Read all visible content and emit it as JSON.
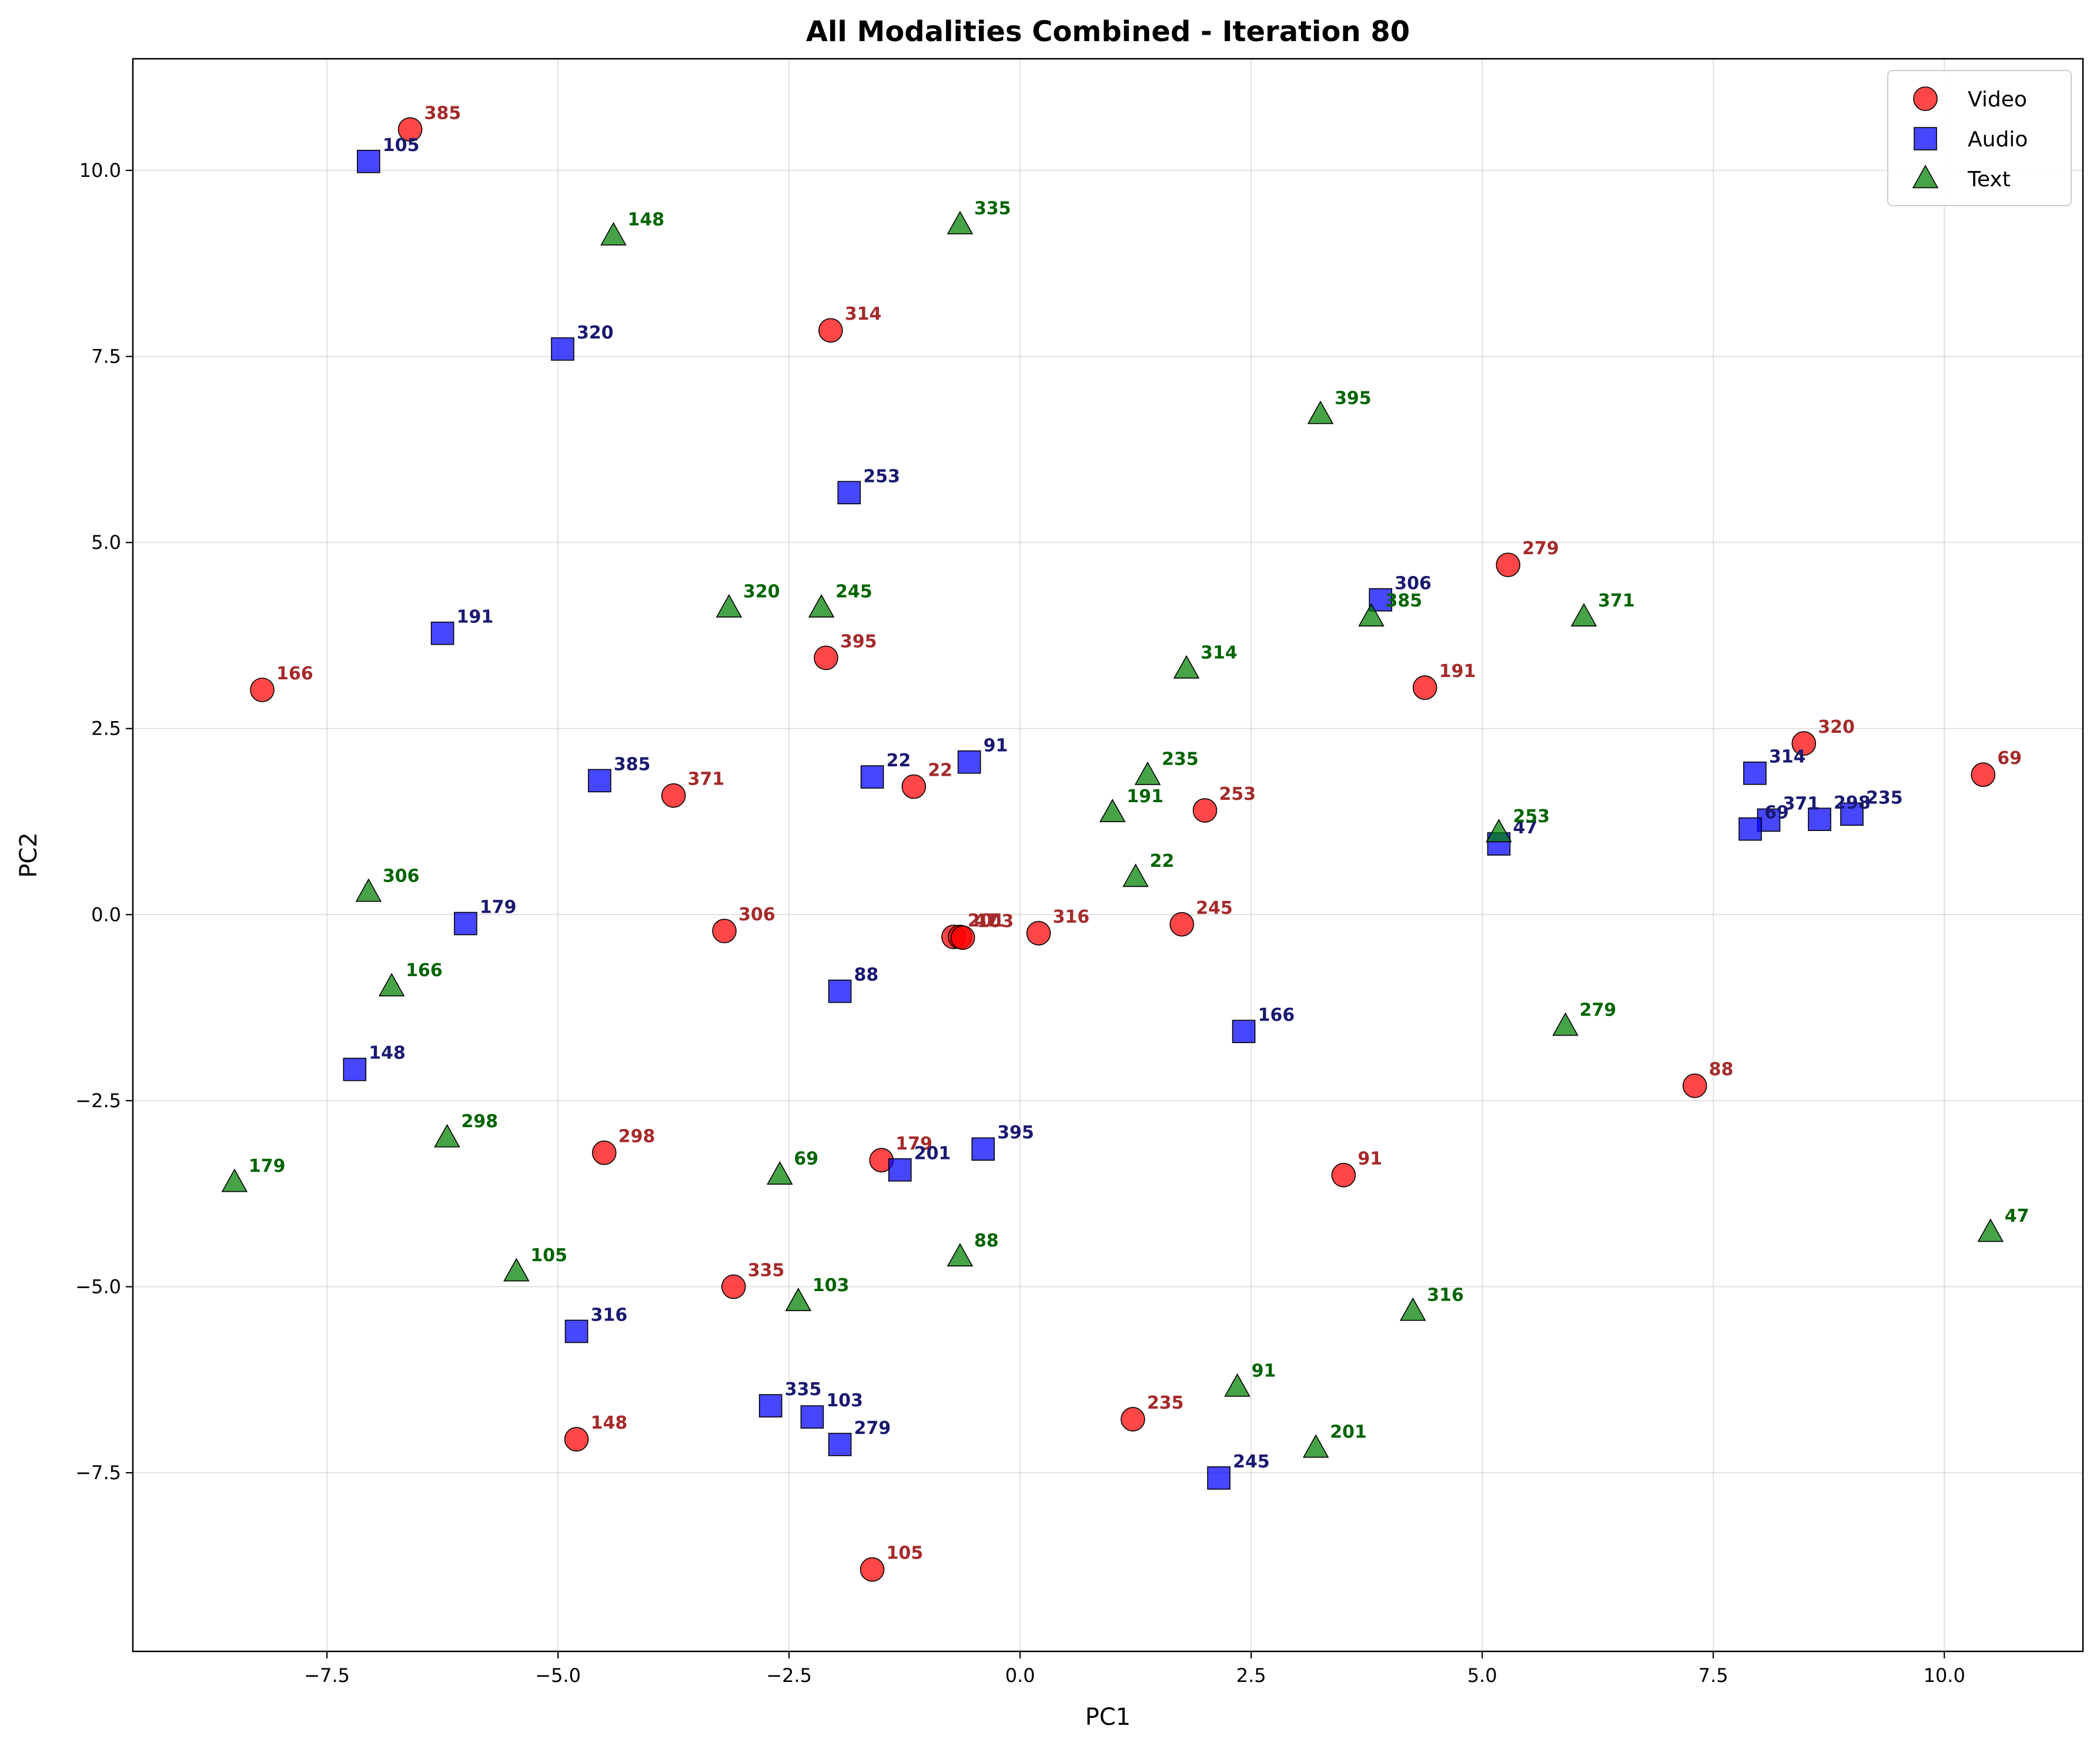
{
  "chart_data": {
    "type": "scatter",
    "title": "All Modalities Combined - Iteration 80",
    "xlabel": "PC1",
    "ylabel": "PC2",
    "xlim": [
      -9.6,
      11.5
    ],
    "ylim": [
      -9.9,
      11.5
    ],
    "xticks": [
      -7.5,
      -5.0,
      -2.5,
      0.0,
      2.5,
      5.0,
      7.5,
      10.0
    ],
    "xtick_labels": [
      "−7.5",
      "−5.0",
      "−2.5",
      "0.0",
      "2.5",
      "5.0",
      "7.5",
      "10.0"
    ],
    "yticks": [
      -7.5,
      -5.0,
      -2.5,
      0.0,
      2.5,
      5.0,
      7.5,
      10.0
    ],
    "ytick_labels": [
      "−7.5",
      "−5.0",
      "−2.5",
      "0.0",
      "2.5",
      "5.0",
      "7.5",
      "10.0"
    ],
    "grid": true,
    "legend": "top-right",
    "series": [
      {
        "name": "Video",
        "marker": "circle",
        "color": "#ff0000",
        "label_color": "#a52a2a",
        "points": [
          {
            "x": -6.6,
            "y": 10.55,
            "label": "385"
          },
          {
            "x": -2.05,
            "y": 7.85,
            "label": "314"
          },
          {
            "x": 5.28,
            "y": 4.7,
            "label": "279"
          },
          {
            "x": -2.1,
            "y": 3.45,
            "label": "395"
          },
          {
            "x": -8.2,
            "y": 3.02,
            "label": "166"
          },
          {
            "x": 4.38,
            "y": 3.05,
            "label": "191"
          },
          {
            "x": 8.48,
            "y": 2.3,
            "label": "320"
          },
          {
            "x": 10.42,
            "y": 1.88,
            "label": "69"
          },
          {
            "x": -1.15,
            "y": 1.72,
            "label": "22"
          },
          {
            "x": -3.75,
            "y": 1.6,
            "label": "371"
          },
          {
            "x": 2.0,
            "y": 1.4,
            "label": "253"
          },
          {
            "x": -3.2,
            "y": -0.22,
            "label": "306"
          },
          {
            "x": -0.72,
            "y": -0.3,
            "label": "201"
          },
          {
            "x": -0.65,
            "y": -0.3,
            "label": "47"
          },
          {
            "x": -0.62,
            "y": -0.31,
            "label": "103"
          },
          {
            "x": 0.2,
            "y": -0.25,
            "label": "316"
          },
          {
            "x": 1.75,
            "y": -0.13,
            "label": "245"
          },
          {
            "x": 7.3,
            "y": -2.3,
            "label": "88"
          },
          {
            "x": -4.5,
            "y": -3.2,
            "label": "298"
          },
          {
            "x": -1.5,
            "y": -3.3,
            "label": "179"
          },
          {
            "x": 3.5,
            "y": -3.5,
            "label": "91"
          },
          {
            "x": -3.1,
            "y": -5.0,
            "label": "335"
          },
          {
            "x": 1.22,
            "y": -6.78,
            "label": "235"
          },
          {
            "x": -4.8,
            "y": -7.05,
            "label": "148"
          },
          {
            "x": -1.6,
            "y": -8.8,
            "label": "105"
          }
        ]
      },
      {
        "name": "Audio",
        "marker": "square",
        "color": "#0000ff",
        "label_color": "#191970",
        "points": [
          {
            "x": -7.05,
            "y": 10.12,
            "label": "105"
          },
          {
            "x": -4.95,
            "y": 7.6,
            "label": "320"
          },
          {
            "x": -1.85,
            "y": 5.67,
            "label": "253"
          },
          {
            "x": 3.9,
            "y": 4.23,
            "label": "306"
          },
          {
            "x": -6.25,
            "y": 3.78,
            "label": "191"
          },
          {
            "x": 7.95,
            "y": 1.9,
            "label": "314"
          },
          {
            "x": -0.55,
            "y": 2.05,
            "label": "91"
          },
          {
            "x": -1.6,
            "y": 1.85,
            "label": "22"
          },
          {
            "x": -4.55,
            "y": 1.8,
            "label": "385"
          },
          {
            "x": 8.1,
            "y": 1.27,
            "label": "371"
          },
          {
            "x": 8.65,
            "y": 1.28,
            "label": "298"
          },
          {
            "x": 9.0,
            "y": 1.35,
            "label": "235"
          },
          {
            "x": 7.9,
            "y": 1.15,
            "label": "69"
          },
          {
            "x": 5.18,
            "y": 0.95,
            "label": "47"
          },
          {
            "x": -6.0,
            "y": -0.12,
            "label": "179"
          },
          {
            "x": -1.95,
            "y": -1.03,
            "label": "88"
          },
          {
            "x": 2.42,
            "y": -1.57,
            "label": "166"
          },
          {
            "x": -7.2,
            "y": -2.08,
            "label": "148"
          },
          {
            "x": -0.4,
            "y": -3.15,
            "label": "395"
          },
          {
            "x": -1.3,
            "y": -3.43,
            "label": "201"
          },
          {
            "x": -4.8,
            "y": -5.6,
            "label": "316"
          },
          {
            "x": -2.7,
            "y": -6.6,
            "label": "335"
          },
          {
            "x": -2.25,
            "y": -6.75,
            "label": "103"
          },
          {
            "x": -1.95,
            "y": -7.12,
            "label": "279"
          },
          {
            "x": 2.15,
            "y": -7.57,
            "label": "245"
          }
        ]
      },
      {
        "name": "Text",
        "marker": "triangle",
        "color": "#008000",
        "label_color": "#006400",
        "points": [
          {
            "x": -0.65,
            "y": 9.27,
            "label": "335"
          },
          {
            "x": -4.4,
            "y": 9.12,
            "label": "148"
          },
          {
            "x": 3.25,
            "y": 6.72,
            "label": "395"
          },
          {
            "x": -2.15,
            "y": 4.12,
            "label": "245"
          },
          {
            "x": -3.15,
            "y": 4.12,
            "label": "320"
          },
          {
            "x": 6.1,
            "y": 4.0,
            "label": "371"
          },
          {
            "x": 3.8,
            "y": 4.0,
            "label": "385"
          },
          {
            "x": 1.8,
            "y": 3.3,
            "label": "314"
          },
          {
            "x": 1.38,
            "y": 1.87,
            "label": "235"
          },
          {
            "x": 1.0,
            "y": 1.37,
            "label": "191"
          },
          {
            "x": 5.18,
            "y": 1.1,
            "label": "253"
          },
          {
            "x": 1.25,
            "y": 0.5,
            "label": "22"
          },
          {
            "x": -7.05,
            "y": 0.3,
            "label": "306"
          },
          {
            "x": -6.8,
            "y": -0.97,
            "label": "166"
          },
          {
            "x": 5.9,
            "y": -1.5,
            "label": "279"
          },
          {
            "x": -6.2,
            "y": -3.0,
            "label": "298"
          },
          {
            "x": -2.6,
            "y": -3.5,
            "label": "69"
          },
          {
            "x": -8.5,
            "y": -3.6,
            "label": "179"
          },
          {
            "x": 10.5,
            "y": -4.27,
            "label": "47"
          },
          {
            "x": -0.65,
            "y": -4.6,
            "label": "88"
          },
          {
            "x": -5.45,
            "y": -4.8,
            "label": "105"
          },
          {
            "x": -2.4,
            "y": -5.2,
            "label": "103"
          },
          {
            "x": 4.25,
            "y": -5.33,
            "label": "316"
          },
          {
            "x": 2.35,
            "y": -6.35,
            "label": "91"
          },
          {
            "x": 3.2,
            "y": -7.17,
            "label": "201"
          }
        ]
      }
    ]
  }
}
